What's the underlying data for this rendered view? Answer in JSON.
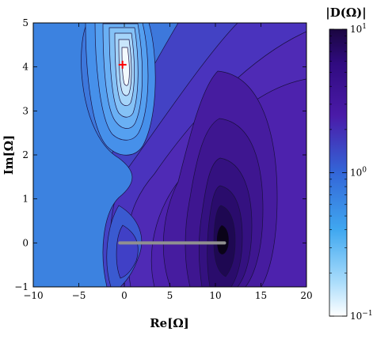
{
  "chart_data": {
    "type": "heatmap",
    "subtype": "contour",
    "title": "",
    "xlabel": "Re[Ω]",
    "ylabel": "Im[Ω]",
    "xlim": [
      -10,
      20
    ],
    "ylim": [
      -1,
      5
    ],
    "x_ticks": [
      -10,
      -5,
      0,
      5,
      10,
      15,
      20
    ],
    "y_ticks": [
      -1,
      0,
      1,
      2,
      3,
      4,
      5
    ],
    "x_tick_labels": [
      "−10",
      "−5",
      "0",
      "5",
      "10",
      "15",
      "20"
    ],
    "y_tick_labels": [
      "−1",
      "0",
      "1",
      "2",
      "3",
      "4",
      "5"
    ],
    "colorbar": {
      "title": "|D(Ω)|",
      "scale": "log",
      "range": [
        0.1,
        10
      ],
      "tick_labels": [
        {
          "base": "10",
          "exp": "1",
          "value": 10
        },
        {
          "base": "10",
          "exp": "0",
          "value": 1
        },
        {
          "base": "10",
          "exp": "−1",
          "value": 0.1
        }
      ],
      "colors": [
        "#ffffff",
        "#40a8f0",
        "#3366d8",
        "#4a1aa8",
        "#1a0640"
      ]
    },
    "features": {
      "minimum_marker": {
        "x": -0.2,
        "y": 4.05,
        "color": "#ff0000",
        "symbol": "+"
      },
      "branch_cut": {
        "x_start": -0.5,
        "x_end": 11,
        "y": 0,
        "color": "#909090"
      },
      "maximum_region": {
        "x": 10.5,
        "y": 0.1
      }
    }
  }
}
